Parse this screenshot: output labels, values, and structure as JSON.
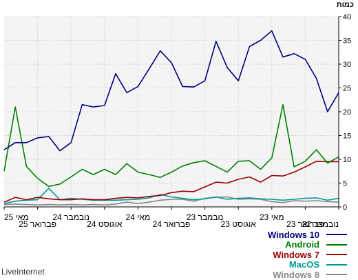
{
  "chart_data": {
    "type": "line",
    "unit_label": "כמות",
    "ylim": [
      0,
      40
    ],
    "y_ticks": [
      0,
      5,
      10,
      15,
      20,
      25,
      30,
      35,
      40
    ],
    "x_tick_labels": [
      "נובמבר 22",
      "פברואר 23",
      "מאי 23",
      "אוגוסט 23",
      "נובמבר 23",
      "פברואר 24",
      "מאי 24",
      "אוגוסט 24",
      "נובמבר 24",
      "פברואר 25",
      "מאי 25"
    ],
    "x_tick_labels_row": [
      "lower",
      "lower",
      "upper",
      "lower",
      "upper",
      "lower",
      "upper",
      "lower",
      "upper",
      "lower",
      "upper"
    ],
    "grid": true,
    "legend_position": "bottom-right",
    "series": [
      {
        "name": "Windows 10",
        "color": "#000080",
        "values": [
          12,
          13.5,
          13.5,
          14.5,
          14.8,
          11.8,
          13.5,
          21.5,
          21,
          21.3,
          28,
          24,
          25.3,
          29,
          32.8,
          30.3,
          25.3,
          25.2,
          26.5,
          34.8,
          29.3,
          26.5,
          33.7,
          35,
          37,
          31.5,
          32.2,
          31,
          27,
          20,
          24
        ]
      },
      {
        "name": "Android",
        "color": "#008000",
        "values": [
          7.5,
          21,
          8.5,
          6,
          4.3,
          4.8,
          6.3,
          7.9,
          6.8,
          7.9,
          6.8,
          9.1,
          7.3,
          6.8,
          6.2,
          7.3,
          8.6,
          9.3,
          9.7,
          8.5,
          7.3,
          9.6,
          9.7,
          7.9,
          10.3,
          21.5,
          8.4,
          9.6,
          12,
          9.2,
          10.5
        ]
      },
      {
        "name": "Windows 7",
        "color": "#990000",
        "values": [
          1,
          2,
          1.5,
          2,
          1.7,
          1.5,
          1.5,
          1.7,
          1.5,
          1.5,
          1.8,
          2,
          1.9,
          2.2,
          2.4,
          3,
          3.3,
          3.2,
          4.2,
          5.2,
          5,
          5.8,
          6.3,
          5.2,
          6.6,
          6.5,
          7.3,
          8.4,
          9.6,
          9.5,
          9.5
        ]
      },
      {
        "name": "MacOS",
        "color": "#009999",
        "values": [
          0.7,
          1.2,
          1.4,
          1.5,
          3.9,
          1.5,
          1.8,
          1.6,
          1.4,
          1.4,
          1.4,
          1.5,
          1.6,
          1.9,
          2.6,
          2.1,
          1.8,
          1.5,
          1.7,
          2.1,
          1.6,
          1.8,
          1.9,
          1.7,
          1.6,
          1.4,
          1.6,
          1.8,
          1.9,
          1.4,
          1.8
        ]
      },
      {
        "name": "Windows 8",
        "color": "#888888",
        "values": [
          0.5,
          0.6,
          0.5,
          0.4,
          0.5,
          0.4,
          0.5,
          0.4,
          0.5,
          0.4,
          0.6,
          1,
          0.7,
          1,
          1.4,
          1.6,
          1.6,
          1.2,
          1.8,
          2,
          2.1,
          1.6,
          1.7,
          1.6,
          1.1,
          0.9,
          1.3,
          1.2,
          1.3,
          1.1,
          1
        ]
      }
    ]
  },
  "brand": "LiveInternet"
}
